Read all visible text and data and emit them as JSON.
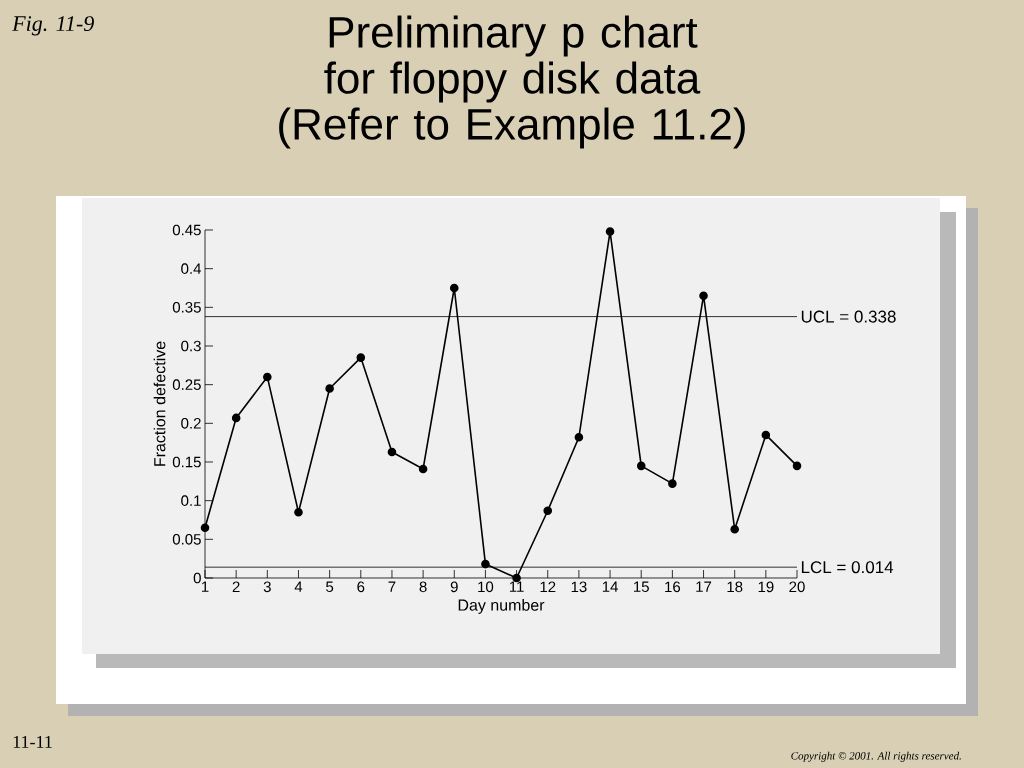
{
  "chart_data": {
    "type": "line",
    "title": "Preliminary p chart for floppy disk data (Refer to Example 11.2)",
    "xlabel": "Day number",
    "ylabel": "Fraction defective",
    "categories": [
      "1",
      "2",
      "3",
      "4",
      "5",
      "6",
      "7",
      "8",
      "9",
      "10",
      "11",
      "12",
      "13",
      "14",
      "15",
      "16",
      "17",
      "18",
      "19",
      "20"
    ],
    "values": [
      0.065,
      0.207,
      0.26,
      0.085,
      0.245,
      0.285,
      0.163,
      0.141,
      0.375,
      0.018,
      0.0,
      0.087,
      0.182,
      0.448,
      0.145,
      0.122,
      0.365,
      0.063,
      0.185,
      0.145
    ],
    "color": "#000000",
    "marker": "circle",
    "line_style": "solid",
    "ylim": [
      0,
      0.45
    ],
    "yticks": [
      0,
      0.05,
      0.1,
      0.15,
      0.2,
      0.25,
      0.3,
      0.35,
      0.4,
      0.45
    ],
    "ref_lines": [
      {
        "axis": "y",
        "value": 0.338,
        "label": "UCL = 0.338"
      },
      {
        "axis": "y",
        "value": 0.014,
        "label": "LCL = 0.014"
      }
    ],
    "annotations": [
      "Fig. 11-9",
      "11-11",
      "Copyright © 2001. All rights reserved."
    ]
  }
}
